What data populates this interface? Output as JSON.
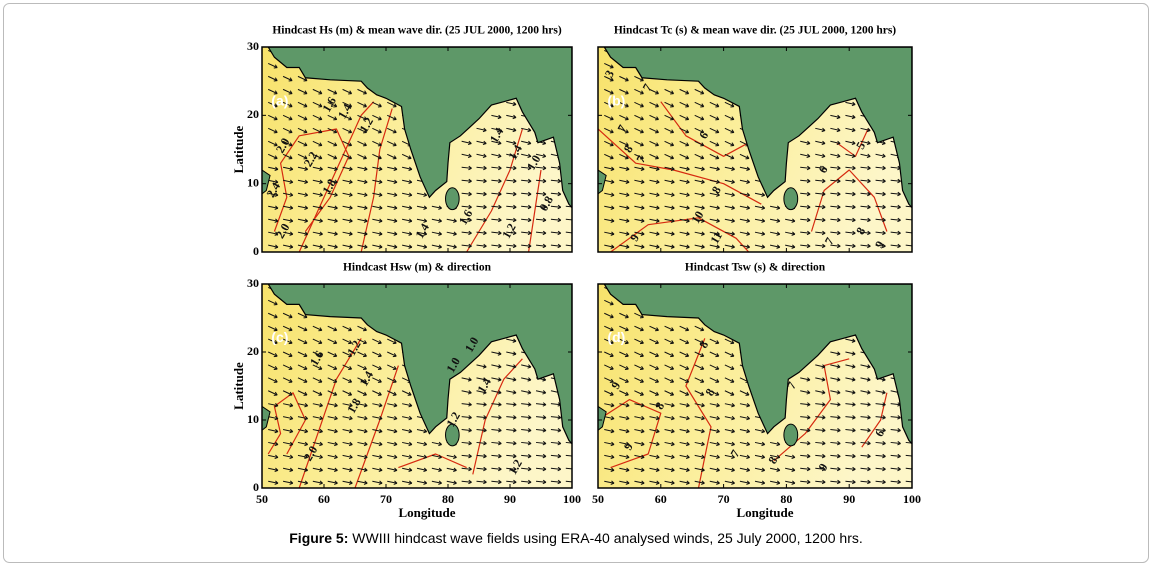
{
  "figure": {
    "caption_label": "Figure 5:",
    "caption_text": "WWIII hindcast wave fields using ERA-40 analysed winds, 25 July 2000, 1200 hrs.",
    "xlabel": "Longitude",
    "ylabel": "Latitude",
    "lon_ticks": [
      50,
      60,
      70,
      80,
      90,
      100
    ],
    "lat_ticks": [
      0,
      10,
      20,
      30
    ],
    "panels": [
      {
        "title": "Hindcast Hs (m) & mean wave dir. (25 JUL 2000, 1200 hrs)",
        "tag": "(a)",
        "contour_labels": [
          "1.6",
          "1.4",
          "1.2",
          "2.0",
          "2.2",
          "2.4",
          "1.8",
          "2.0",
          "1.4",
          "1.6",
          "1.4",
          "1.0",
          "1.2",
          "0.8",
          "1.4"
        ]
      },
      {
        "title": "Hindcast Tc (s) & mean wave dir. (25 JUL 2000, 1200 hrs)",
        "tag": "(b)",
        "contour_labels": [
          "3",
          "7",
          "8",
          "7",
          "6",
          "8",
          "5",
          "6",
          "9",
          "10",
          "11",
          "7",
          "8",
          "9",
          "7"
        ]
      },
      {
        "title": "Hindcast Hsw (m) & direction",
        "tag": "(c)",
        "contour_labels": [
          "1.2",
          "1.6",
          "1.4",
          "1.8",
          "2.0",
          "1.0",
          "1.2",
          "1.4",
          "1.0",
          "1.2"
        ]
      },
      {
        "title": "Hindcast Tsw (s) & direction",
        "tag": "(d)",
        "contour_labels": [
          "8",
          "9",
          "9",
          "8",
          "8",
          "7",
          "7",
          "6",
          "8",
          "9"
        ]
      }
    ]
  }
}
